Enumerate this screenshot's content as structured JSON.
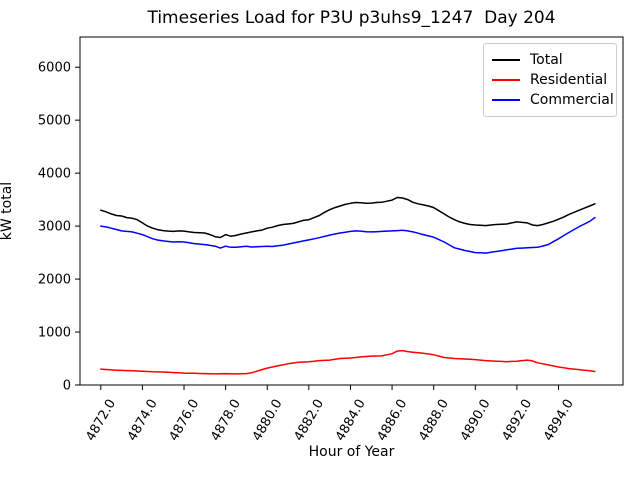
{
  "window": {
    "background_color": "#ffffff"
  },
  "chart_data": {
    "type": "line",
    "title": "Timeseries Load for P3U p3uhs9_1247  Day 204",
    "xlabel": "Hour of Year",
    "ylabel": "kW total",
    "xlim": [
      4871.0,
      4897.1
    ],
    "ylim": [
      0,
      6570
    ],
    "grid": false,
    "legend_position": "upper right",
    "x_ticks": [
      "4872.0",
      "4874.0",
      "4876.0",
      "4878.0",
      "4880.0",
      "4882.0",
      "4884.0",
      "4886.0",
      "4888.0",
      "4890.0",
      "4892.0",
      "4894.0"
    ],
    "y_ticks": [
      "0",
      "1000",
      "2000",
      "3000",
      "4000",
      "5000",
      "6000"
    ],
    "x": [
      4872.0,
      4872.25,
      4872.5,
      4872.75,
      4873.0,
      4873.25,
      4873.5,
      4873.75,
      4874.0,
      4874.25,
      4874.5,
      4874.75,
      4875.0,
      4875.25,
      4875.5,
      4875.75,
      4876.0,
      4876.25,
      4876.5,
      4876.75,
      4877.0,
      4877.25,
      4877.5,
      4877.75,
      4878.0,
      4878.25,
      4878.5,
      4878.75,
      4879.0,
      4879.25,
      4879.5,
      4879.75,
      4880.0,
      4880.25,
      4880.5,
      4880.75,
      4881.0,
      4881.25,
      4881.5,
      4881.75,
      4882.0,
      4882.25,
      4882.5,
      4882.75,
      4883.0,
      4883.25,
      4883.5,
      4883.75,
      4884.0,
      4884.25,
      4884.5,
      4884.75,
      4885.0,
      4885.25,
      4885.5,
      4885.75,
      4886.0,
      4886.25,
      4886.5,
      4886.75,
      4887.0,
      4887.25,
      4887.5,
      4887.75,
      4888.0,
      4888.25,
      4888.5,
      4888.75,
      4889.0,
      4889.25,
      4889.5,
      4889.75,
      4890.0,
      4890.25,
      4890.5,
      4890.75,
      4891.0,
      4891.25,
      4891.5,
      4891.75,
      4892.0,
      4892.25,
      4892.5,
      4892.75,
      4893.0,
      4893.25,
      4893.5,
      4893.75,
      4894.0,
      4894.25,
      4894.5,
      4894.75,
      4895.0,
      4895.25,
      4895.5,
      4895.75
    ],
    "series": [
      {
        "name": "Total",
        "color": "#000000",
        "values": [
          3300,
          3270,
          3230,
          3200,
          3190,
          3160,
          3150,
          3120,
          3060,
          3000,
          2960,
          2930,
          2915,
          2905,
          2900,
          2910,
          2905,
          2890,
          2880,
          2875,
          2870,
          2840,
          2800,
          2785,
          2840,
          2810,
          2825,
          2850,
          2870,
          2890,
          2910,
          2925,
          2960,
          2980,
          3010,
          3030,
          3040,
          3050,
          3080,
          3110,
          3120,
          3160,
          3200,
          3260,
          3310,
          3350,
          3380,
          3410,
          3430,
          3445,
          3440,
          3430,
          3435,
          3445,
          3450,
          3470,
          3490,
          3540,
          3530,
          3500,
          3450,
          3420,
          3400,
          3380,
          3350,
          3290,
          3230,
          3170,
          3120,
          3080,
          3050,
          3030,
          3020,
          3015,
          3010,
          3020,
          3030,
          3035,
          3040,
          3060,
          3080,
          3070,
          3060,
          3020,
          3010,
          3030,
          3060,
          3090,
          3130,
          3170,
          3220,
          3260,
          3300,
          3340,
          3380,
          3420
        ]
      },
      {
        "name": "Residential",
        "color": "#ff0000",
        "values": [
          300,
          292,
          285,
          280,
          275,
          272,
          270,
          265,
          260,
          255,
          250,
          247,
          245,
          240,
          235,
          230,
          225,
          222,
          220,
          218,
          215,
          212,
          210,
          212,
          215,
          212,
          210,
          212,
          215,
          230,
          260,
          290,
          320,
          340,
          360,
          380,
          400,
          415,
          430,
          435,
          440,
          450,
          460,
          465,
          470,
          485,
          500,
          505,
          510,
          520,
          530,
          538,
          545,
          548,
          550,
          570,
          590,
          640,
          650,
          630,
          620,
          610,
          600,
          585,
          570,
          545,
          520,
          510,
          500,
          495,
          490,
          485,
          480,
          470,
          460,
          455,
          450,
          445,
          440,
          445,
          450,
          460,
          470,
          455,
          420,
          400,
          380,
          360,
          340,
          325,
          310,
          300,
          290,
          280,
          270,
          255
        ]
      },
      {
        "name": "Commercial",
        "color": "#0000ff",
        "values": [
          3000,
          2985,
          2960,
          2935,
          2910,
          2900,
          2890,
          2865,
          2840,
          2800,
          2760,
          2735,
          2720,
          2710,
          2700,
          2705,
          2700,
          2685,
          2670,
          2660,
          2650,
          2635,
          2620,
          2585,
          2620,
          2600,
          2600,
          2610,
          2620,
          2605,
          2610,
          2615,
          2620,
          2615,
          2630,
          2640,
          2660,
          2680,
          2700,
          2720,
          2740,
          2760,
          2780,
          2805,
          2830,
          2850,
          2870,
          2885,
          2900,
          2910,
          2905,
          2895,
          2890,
          2895,
          2900,
          2905,
          2910,
          2915,
          2920,
          2910,
          2890,
          2865,
          2840,
          2815,
          2790,
          2745,
          2700,
          2645,
          2590,
          2565,
          2540,
          2520,
          2500,
          2495,
          2490,
          2505,
          2520,
          2535,
          2550,
          2565,
          2580,
          2585,
          2590,
          2595,
          2600,
          2625,
          2650,
          2705,
          2760,
          2820,
          2880,
          2935,
          2990,
          3040,
          3090,
          3160
        ]
      }
    ]
  }
}
